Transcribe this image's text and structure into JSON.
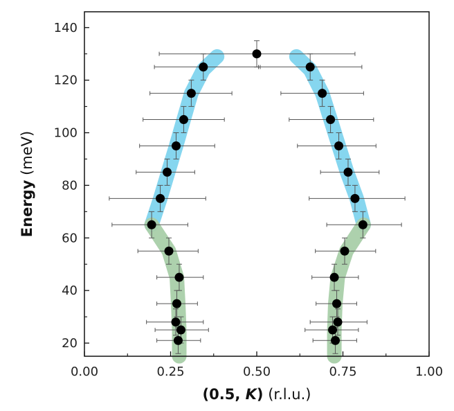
{
  "chart_data": {
    "type": "scatter",
    "title": "",
    "xlabel": {
      "bold": "(0.5, ",
      "bold_italic": "K",
      "bold_close": ")",
      "unit": " (r.l.u.)"
    },
    "ylabel": {
      "bold": "Energy",
      "unit": " (meV)"
    },
    "xlim": [
      0,
      1
    ],
    "ylim": [
      15,
      146
    ],
    "xticks": [
      0,
      0.25,
      0.5,
      0.75,
      1
    ],
    "xtick_labels": [
      "0.00",
      "0.25",
      "0.50",
      "0.75",
      "1.00"
    ],
    "yticks": [
      20,
      40,
      60,
      80,
      100,
      120,
      140
    ],
    "ytick_labels": [
      "20",
      "40",
      "60",
      "80",
      "100",
      "120",
      "140"
    ],
    "grid": false,
    "colors": {
      "upper_band": "#7fd4ee",
      "lower_band": "#a9cfa9",
      "points": "#000000",
      "errorbar": "#555555"
    },
    "bands": [
      {
        "color": "upper_band",
        "points": [
          [
            0.385,
            129
          ],
          [
            0.345,
            124
          ],
          [
            0.31,
            115
          ],
          [
            0.288,
            105
          ],
          [
            0.266,
            95
          ],
          [
            0.243,
            85
          ],
          [
            0.22,
            75
          ],
          [
            0.195,
            65
          ]
        ]
      },
      {
        "color": "upper_band",
        "points": [
          [
            0.615,
            129
          ],
          [
            0.655,
            124
          ],
          [
            0.69,
            115
          ],
          [
            0.714,
            105
          ],
          [
            0.738,
            95
          ],
          [
            0.762,
            85
          ],
          [
            0.79,
            75
          ],
          [
            0.81,
            65
          ]
        ]
      },
      {
        "color": "lower_band",
        "points": [
          [
            0.195,
            65
          ],
          [
            0.245,
            55
          ],
          [
            0.268,
            45
          ],
          [
            0.272,
            35
          ],
          [
            0.275,
            25
          ],
          [
            0.275,
            15
          ]
        ]
      },
      {
        "color": "lower_band",
        "points": [
          [
            0.81,
            65
          ],
          [
            0.76,
            55
          ],
          [
            0.735,
            45
          ],
          [
            0.728,
            35
          ],
          [
            0.725,
            25
          ],
          [
            0.725,
            15
          ]
        ]
      }
    ],
    "series": [
      {
        "points": [
          {
            "x": 0.5,
            "y": 130,
            "xerr": [
              0.283,
              0.285
            ],
            "yerr": 5
          },
          {
            "x": 0.345,
            "y": 125,
            "xerr": [
              0.142,
              0.165
            ],
            "yerr": 5
          },
          {
            "x": 0.31,
            "y": 115,
            "xerr": [
              0.12,
              0.118
            ],
            "yerr": 5
          },
          {
            "x": 0.288,
            "y": 105,
            "xerr": [
              0.118,
              0.118
            ],
            "yerr": 5
          },
          {
            "x": 0.266,
            "y": 95,
            "xerr": [
              0.106,
              0.112
            ],
            "yerr": 5
          },
          {
            "x": 0.24,
            "y": 85,
            "xerr": [
              0.09,
              0.08
            ],
            "yerr": 5
          },
          {
            "x": 0.22,
            "y": 75,
            "xerr": [
              0.148,
              0.132
            ],
            "yerr": 5
          },
          {
            "x": 0.195,
            "y": 65,
            "xerr": [
              0.115,
              0.105
            ],
            "yerr": 5
          },
          {
            "x": 0.245,
            "y": 55,
            "xerr": [
              0.09,
              0.085
            ],
            "yerr": 5
          },
          {
            "x": 0.275,
            "y": 45,
            "xerr": [
              0.065,
              0.07
            ],
            "yerr": 5
          },
          {
            "x": 0.268,
            "y": 35,
            "xerr": [
              0.058,
              0.06
            ],
            "yerr": 5
          },
          {
            "x": 0.265,
            "y": 28,
            "xerr": [
              0.085,
              0.08
            ],
            "yerr": 5
          },
          {
            "x": 0.28,
            "y": 25,
            "xerr": [
              0.075,
              0.08
            ],
            "yerr": 5
          },
          {
            "x": 0.272,
            "y": 21,
            "xerr": [
              0.062,
              0.065
            ],
            "yerr": 5
          },
          {
            "x": 0.655,
            "y": 125,
            "xerr": [
              0.15,
              0.15
            ],
            "yerr": 5
          },
          {
            "x": 0.69,
            "y": 115,
            "xerr": [
              0.12,
              0.12
            ],
            "yerr": 5
          },
          {
            "x": 0.714,
            "y": 105,
            "xerr": [
              0.12,
              0.125
            ],
            "yerr": 5
          },
          {
            "x": 0.738,
            "y": 95,
            "xerr": [
              0.12,
              0.108
            ],
            "yerr": 5
          },
          {
            "x": 0.765,
            "y": 85,
            "xerr": [
              0.08,
              0.09
            ],
            "yerr": 5
          },
          {
            "x": 0.785,
            "y": 75,
            "xerr": [
              0.133,
              0.145
            ],
            "yerr": 5
          },
          {
            "x": 0.808,
            "y": 65,
            "xerr": [
              0.105,
              0.112
            ],
            "yerr": 5
          },
          {
            "x": 0.755,
            "y": 55,
            "xerr": [
              0.085,
              0.09
            ],
            "yerr": 5
          },
          {
            "x": 0.725,
            "y": 45,
            "xerr": [
              0.065,
              0.07
            ],
            "yerr": 5
          },
          {
            "x": 0.732,
            "y": 35,
            "xerr": [
              0.06,
              0.058
            ],
            "yerr": 5
          },
          {
            "x": 0.735,
            "y": 28,
            "xerr": [
              0.08,
              0.085
            ],
            "yerr": 5
          },
          {
            "x": 0.72,
            "y": 25,
            "xerr": [
              0.08,
              0.075
            ],
            "yerr": 5
          },
          {
            "x": 0.728,
            "y": 21,
            "xerr": [
              0.065,
              0.062
            ],
            "yerr": 5
          }
        ]
      }
    ]
  }
}
